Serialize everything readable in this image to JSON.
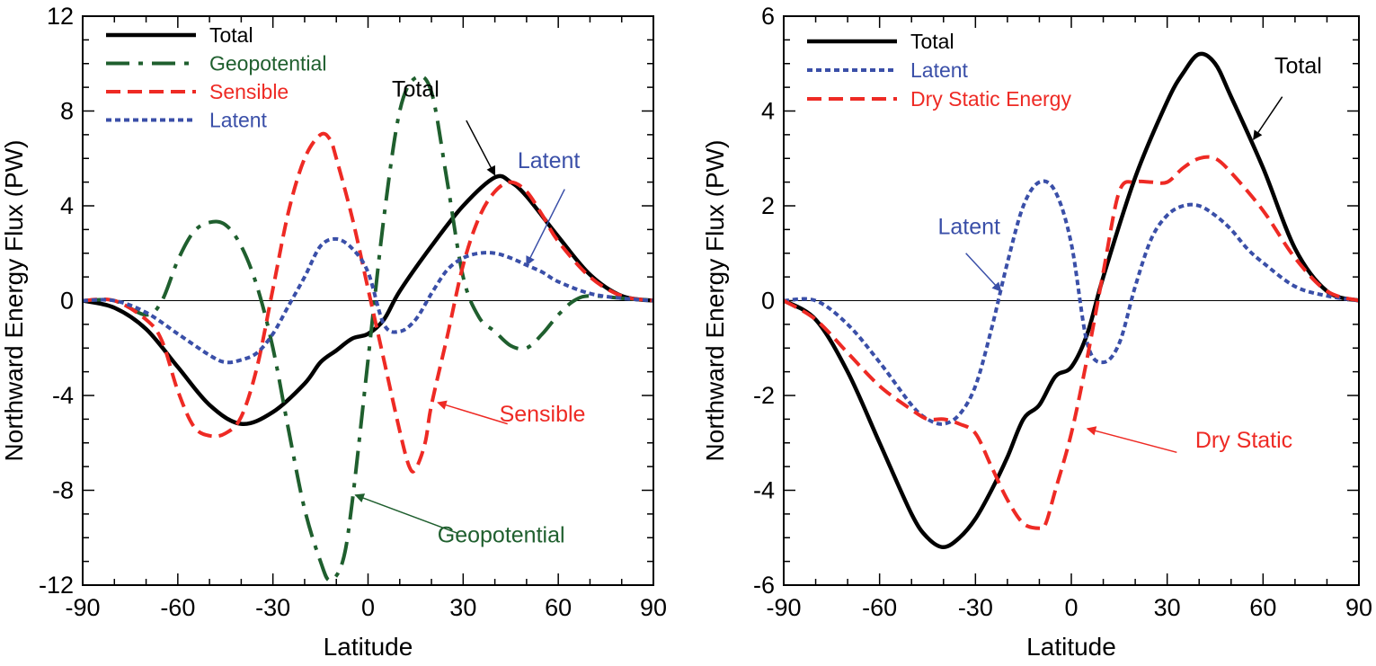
{
  "colors": {
    "total": "#000000",
    "geopotential": "#1f5f2e",
    "sensible": "#ee2a24",
    "latent": "#3a4fa8",
    "dry_static": "#ee2a24"
  },
  "chart_data": [
    {
      "type": "line",
      "xlabel": "Latitude",
      "ylabel": "Northward Energy Flux (PW)",
      "xlim": [
        -90,
        90
      ],
      "ylim": [
        -12,
        12
      ],
      "x_ticks": [
        "-90",
        "-60",
        "-30",
        "0",
        "30",
        "60",
        "90"
      ],
      "y_ticks": [
        "-12",
        "-8",
        "-4",
        "0",
        "4",
        "8",
        "12"
      ],
      "legend_position": "top-left",
      "series": [
        {
          "name": "Total",
          "key": "total",
          "style": "solid",
          "x": [
            -90,
            -80,
            -70,
            -60,
            -50,
            -40,
            -30,
            -20,
            -15,
            -10,
            -5,
            0,
            5,
            10,
            20,
            30,
            40,
            45,
            50,
            60,
            70,
            80,
            90
          ],
          "y": [
            0,
            -0.3,
            -1.2,
            -2.8,
            -4.4,
            -5.2,
            -4.7,
            -3.5,
            -2.6,
            -2.1,
            -1.6,
            -1.4,
            -0.8,
            0.4,
            2.3,
            4.0,
            5.2,
            5.0,
            4.4,
            2.7,
            1.1,
            0.2,
            0
          ]
        },
        {
          "name": "Geopotential",
          "key": "geopotential",
          "style": "dashdot",
          "x": [
            -90,
            -80,
            -70,
            -65,
            -60,
            -55,
            -50,
            -45,
            -40,
            -35,
            -30,
            -25,
            -20,
            -15,
            -12,
            -8,
            -5,
            0,
            5,
            10,
            15,
            20,
            25,
            30,
            35,
            40,
            45,
            50,
            55,
            60,
            65,
            70,
            80,
            90
          ],
          "y": [
            0,
            0,
            -0.6,
            0,
            1.7,
            2.9,
            3.3,
            3.2,
            2.3,
            0.6,
            -2.0,
            -5.5,
            -8.8,
            -11.0,
            -11.8,
            -11.0,
            -8.5,
            -2.5,
            3.5,
            8.0,
            9.4,
            8.8,
            5.0,
            1.0,
            -0.7,
            -1.3,
            -1.9,
            -2.0,
            -1.4,
            -0.6,
            0,
            0.2,
            0.1,
            0
          ]
        },
        {
          "name": "Sensible",
          "key": "sensible",
          "style": "dashed",
          "x": [
            -90,
            -80,
            -70,
            -65,
            -60,
            -55,
            -50,
            -45,
            -40,
            -35,
            -30,
            -25,
            -20,
            -15,
            -12,
            -10,
            -5,
            0,
            5,
            10,
            13,
            15,
            18,
            20,
            25,
            30,
            35,
            40,
            45,
            50,
            55,
            60,
            70,
            80,
            90
          ],
          "y": [
            0,
            0,
            -0.8,
            -1.7,
            -3.8,
            -5.3,
            -5.7,
            -5.6,
            -4.9,
            -2.8,
            0.5,
            3.8,
            6.0,
            7.0,
            6.8,
            6.0,
            3.5,
            0.5,
            -2.5,
            -5.5,
            -7.0,
            -7.1,
            -6.0,
            -4.4,
            -1.5,
            1.5,
            3.5,
            4.6,
            5.0,
            4.6,
            3.6,
            2.5,
            1.0,
            0.2,
            0
          ]
        },
        {
          "name": "Latent",
          "key": "latent",
          "style": "dotted",
          "x": [
            -90,
            -80,
            -70,
            -60,
            -50,
            -45,
            -40,
            -35,
            -30,
            -25,
            -20,
            -15,
            -10,
            -5,
            0,
            5,
            10,
            15,
            20,
            25,
            30,
            35,
            40,
            45,
            50,
            55,
            60,
            70,
            80,
            90
          ],
          "y": [
            0,
            0,
            -0.5,
            -1.4,
            -2.3,
            -2.6,
            -2.5,
            -2.2,
            -1.4,
            -0.2,
            1.0,
            2.3,
            2.6,
            2.2,
            1.2,
            -1.0,
            -1.3,
            -0.8,
            0.3,
            1.3,
            1.8,
            2.0,
            2.0,
            1.8,
            1.5,
            1.2,
            0.8,
            0.3,
            0.1,
            0
          ]
        }
      ],
      "annotations": [
        {
          "text": "Total",
          "key": "total",
          "tx": 15,
          "ty": 8.6,
          "ax": 42,
          "ay": 5.3,
          "tip": [
            40,
            5.3
          ],
          "tail": [
            31,
            7.6
          ]
        },
        {
          "text": "Latent",
          "key": "latent",
          "tx": 57,
          "ty": 5.6,
          "ax": 52,
          "ay": 1.5,
          "tip": [
            50,
            1.5
          ],
          "tail": [
            62,
            4.7
          ]
        },
        {
          "text": "Sensible",
          "key": "sensible",
          "tx": 55,
          "ty": -5.1,
          "ax": 22,
          "ay": -4.3,
          "tip": [
            22,
            -4.3
          ],
          "tail": [
            44,
            -5.2
          ]
        },
        {
          "text": "Geopotential",
          "key": "geopotential",
          "tx": 42,
          "ty": -10.2,
          "ax": -4,
          "ay": -8.2,
          "tip": [
            -4,
            -8.2
          ],
          "tail": [
            28,
            -9.8
          ]
        }
      ]
    },
    {
      "type": "line",
      "xlabel": "Latitude",
      "ylabel": "Northward Energy Flux (PW)",
      "xlim": [
        -90,
        90
      ],
      "ylim": [
        -6,
        6
      ],
      "x_ticks": [
        "-90",
        "-60",
        "-30",
        "0",
        "30",
        "60",
        "90"
      ],
      "y_ticks": [
        "-6",
        "-4",
        "-2",
        "0",
        "2",
        "4",
        "6"
      ],
      "legend_position": "top-left",
      "series": [
        {
          "name": "Total",
          "key": "total",
          "style": "solid",
          "x": [
            -90,
            -80,
            -70,
            -60,
            -50,
            -45,
            -40,
            -35,
            -30,
            -25,
            -20,
            -15,
            -10,
            -5,
            0,
            5,
            10,
            20,
            30,
            35,
            40,
            45,
            50,
            60,
            70,
            80,
            90
          ],
          "y": [
            0,
            -0.4,
            -1.5,
            -3.0,
            -4.5,
            -5.0,
            -5.2,
            -5.0,
            -4.6,
            -4.0,
            -3.3,
            -2.5,
            -2.2,
            -1.6,
            -1.4,
            -0.7,
            0.5,
            2.6,
            4.2,
            4.8,
            5.2,
            5.0,
            4.3,
            2.8,
            1.1,
            0.2,
            0
          ]
        },
        {
          "name": "Latent",
          "key": "latent",
          "style": "dotted",
          "x": [
            -90,
            -80,
            -70,
            -60,
            -50,
            -45,
            -40,
            -35,
            -30,
            -25,
            -20,
            -15,
            -10,
            -5,
            0,
            5,
            10,
            15,
            20,
            25,
            30,
            35,
            40,
            45,
            50,
            55,
            60,
            70,
            80,
            90
          ],
          "y": [
            0,
            0,
            -0.5,
            -1.3,
            -2.2,
            -2.5,
            -2.6,
            -2.4,
            -1.8,
            -0.6,
            0.8,
            2.0,
            2.5,
            2.3,
            1.2,
            -0.9,
            -1.3,
            -0.9,
            0.3,
            1.3,
            1.8,
            2.0,
            2.0,
            1.8,
            1.5,
            1.1,
            0.8,
            0.3,
            0.1,
            0
          ]
        },
        {
          "name": "Dry Static Energy",
          "key": "dry_static",
          "style": "dashed",
          "x": [
            -90,
            -80,
            -70,
            -60,
            -50,
            -45,
            -40,
            -35,
            -30,
            -25,
            -20,
            -15,
            -10,
            -8,
            -5,
            0,
            5,
            10,
            15,
            20,
            25,
            30,
            35,
            40,
            45,
            50,
            60,
            70,
            80,
            90
          ],
          "y": [
            0,
            -0.4,
            -1.1,
            -1.8,
            -2.3,
            -2.5,
            -2.5,
            -2.6,
            -2.8,
            -3.5,
            -4.2,
            -4.7,
            -4.8,
            -4.7,
            -4.0,
            -2.8,
            -1.2,
            0.6,
            2.3,
            2.5,
            2.5,
            2.5,
            2.8,
            3.0,
            3.0,
            2.7,
            1.9,
            0.9,
            0.2,
            0
          ]
        }
      ],
      "annotations": [
        {
          "text": "Total",
          "key": "total",
          "tx": 71,
          "ty": 4.8,
          "ax": 58,
          "ay": 3.4,
          "tip": [
            57,
            3.4
          ],
          "tail": [
            66,
            4.3
          ]
        },
        {
          "text": "Latent",
          "key": "latent",
          "tx": -32,
          "ty": 1.4,
          "ax": -22,
          "ay": 0.2,
          "tip": [
            -22,
            0.2
          ],
          "tail": [
            -33,
            1.0
          ]
        },
        {
          "text": "Dry Static",
          "key": "dry_static",
          "tx": 54,
          "ty": -3.1,
          "ax": 5,
          "ay": -2.7,
          "tip": [
            5,
            -2.7
          ],
          "tail": [
            33,
            -3.2
          ]
        }
      ]
    }
  ]
}
